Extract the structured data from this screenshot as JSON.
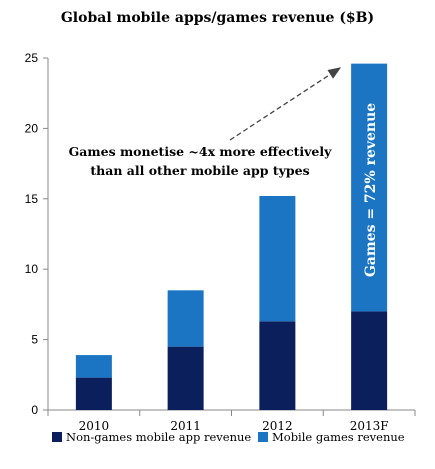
{
  "chart_data": {
    "type": "bar",
    "stacked": true,
    "title": "Global mobile apps/games revenue ($B)",
    "categories": [
      "2010",
      "2011",
      "2012",
      "2013F"
    ],
    "series": [
      {
        "name": "Non-games mobile app revenue",
        "values": [
          2.3,
          4.5,
          6.3,
          7.0
        ],
        "color": "#0b1f5c"
      },
      {
        "name": "Mobile games revenue",
        "values": [
          1.6,
          4.0,
          8.9,
          17.6
        ],
        "color": "#1b75c2"
      }
    ],
    "ylim": [
      0,
      25
    ],
    "yticks": [
      "0",
      "5",
      "10",
      "15",
      "20",
      "25"
    ],
    "grid": false,
    "legend": "bottom",
    "annotations": {
      "arrow_text_line1": "Games monetise ~4x more effectively",
      "arrow_text_line2": "than all other mobile app types",
      "bar_label": "Games = 72% revenue"
    }
  }
}
